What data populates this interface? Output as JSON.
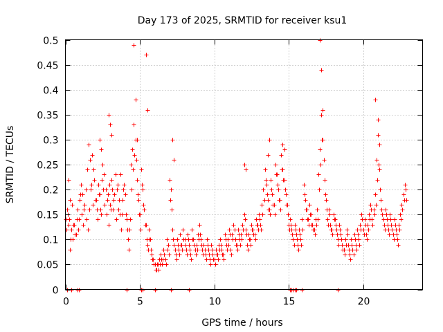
{
  "chart_data": {
    "type": "scatter",
    "title": "Day 173 of 2025, SRMTID for receiver ksu1",
    "xlabel": "GPS time / hours",
    "ylabel": "SRMTID / TECUs",
    "xlim": [
      0,
      24
    ],
    "ylim": [
      0,
      0.5
    ],
    "xticks": [
      0,
      5,
      10,
      15,
      20
    ],
    "xtick_labels": [
      "0",
      "5",
      "10",
      "15",
      "20"
    ],
    "yticks": [
      0,
      0.05,
      0.1,
      0.15,
      0.2,
      0.25,
      0.3,
      0.35,
      0.4,
      0.45,
      0.5
    ],
    "ytick_labels": [
      "0",
      "0.05",
      "0.1",
      "0.15",
      "0.2",
      "0.25",
      "0.3",
      "0.35",
      "0.4",
      "0.45",
      "0.5"
    ],
    "grid": true,
    "marker": "+",
    "color": "#ff0000",
    "series": [
      {
        "name": "SRMTID",
        "x": [
          0.0,
          0.1,
          0.2,
          0.3,
          0.4,
          0.5,
          0.6,
          0.7,
          0.8,
          0.9,
          1.0,
          1.1,
          1.2,
          1.3,
          1.4,
          1.5,
          1.6,
          1.7,
          1.8,
          1.9,
          2.0,
          2.1,
          2.2,
          2.3,
          2.4,
          2.5,
          2.6,
          2.7,
          2.8,
          2.9,
          3.0,
          3.1,
          3.2,
          3.3,
          3.4,
          3.5,
          3.6,
          3.7,
          3.8,
          3.9,
          4.0,
          4.1,
          4.2,
          4.3,
          4.4,
          4.5,
          4.6,
          4.7,
          4.8,
          4.9,
          5.0,
          5.1,
          5.2,
          5.3,
          5.4,
          5.5,
          5.6,
          5.7,
          5.8,
          5.9,
          6.0,
          6.1,
          6.2,
          6.3,
          6.4,
          6.5,
          6.6,
          6.7,
          6.8,
          6.9,
          7.0,
          7.1,
          7.2,
          7.3,
          7.4,
          7.5,
          7.6,
          7.7,
          7.8,
          7.9,
          8.0,
          8.1,
          8.2,
          8.3,
          8.4,
          8.5,
          8.6,
          8.7,
          8.8,
          8.9,
          9.0,
          9.1,
          9.2,
          9.3,
          9.4,
          9.5,
          9.6,
          9.7,
          9.8,
          9.9,
          10.0,
          10.1,
          10.2,
          10.3,
          10.4,
          10.5,
          10.6,
          10.7,
          10.8,
          10.9,
          11.0,
          11.1,
          11.2,
          11.3,
          11.4,
          11.5,
          11.6,
          11.7,
          11.8,
          11.9,
          12.0,
          12.1,
          12.2,
          12.3,
          12.4,
          12.5,
          12.6,
          12.7,
          12.8,
          12.9,
          13.0,
          13.1,
          13.2,
          13.3,
          13.4,
          13.5,
          13.6,
          13.7,
          13.8,
          13.9,
          14.0,
          14.1,
          14.2,
          14.3,
          14.4,
          14.5,
          14.6,
          14.7,
          14.8,
          14.9,
          15.0,
          15.1,
          15.2,
          15.3,
          15.4,
          15.5,
          15.6,
          15.7,
          15.8,
          15.9,
          16.0,
          16.1,
          16.2,
          16.3,
          16.4,
          16.5,
          16.6,
          16.7,
          16.8,
          16.9,
          17.0,
          17.1,
          17.2,
          17.3,
          17.4,
          17.5,
          17.6,
          17.7,
          17.8,
          17.9,
          18.0,
          18.1,
          18.2,
          18.3,
          18.4,
          18.5,
          18.6,
          18.7,
          18.8,
          18.9,
          19.0,
          19.1,
          19.2,
          19.3,
          19.4,
          19.5,
          19.6,
          19.7,
          19.8,
          19.9,
          20.0,
          20.1,
          20.2,
          20.3,
          20.4,
          20.5,
          20.6,
          20.7,
          20.8,
          20.9,
          21.0,
          21.1,
          21.2,
          21.3,
          21.4,
          21.5,
          21.6,
          21.7,
          21.8,
          21.9,
          22.0,
          22.1,
          22.2,
          22.3,
          22.4,
          22.5,
          22.6,
          22.7,
          22.8,
          22.9,
          0.05,
          0.15,
          0.25,
          0.35,
          0.45,
          0.55,
          0.65,
          0.75,
          0.85,
          0.95,
          1.05,
          1.15,
          1.25,
          1.35,
          1.45,
          1.55,
          1.65,
          1.75,
          1.85,
          1.95,
          2.05,
          2.15,
          2.25,
          2.35,
          2.45,
          2.55,
          2.65,
          2.75,
          2.85,
          2.95,
          3.05,
          3.15,
          3.25,
          3.35,
          3.45,
          3.55,
          3.65,
          3.75,
          3.85,
          3.95,
          4.05,
          4.15,
          4.25,
          4.35,
          4.45,
          4.55,
          4.65,
          4.75,
          4.85,
          4.95,
          5.05,
          5.15,
          5.25,
          5.35,
          5.45,
          5.55,
          5.65,
          5.75,
          5.85,
          5.95,
          6.05,
          6.15,
          6.25,
          6.35,
          6.45,
          6.55,
          6.65,
          6.75,
          6.85,
          6.95,
          7.05,
          7.15,
          7.25,
          7.35,
          7.45,
          7.55,
          7.65,
          7.75,
          7.85,
          7.95,
          8.05,
          8.15,
          8.25,
          8.35,
          8.45,
          8.55,
          8.65,
          8.75,
          8.85,
          8.95,
          9.05,
          9.15,
          9.25,
          9.35,
          9.45,
          9.55,
          9.65,
          9.75,
          9.85,
          9.95,
          10.05,
          10.15,
          10.25,
          10.35,
          10.45,
          10.55,
          10.65,
          10.75,
          10.85,
          10.95,
          11.05,
          11.15,
          11.25,
          11.35,
          11.45,
          11.55,
          11.65,
          11.75,
          11.85,
          11.95,
          12.05,
          12.15,
          12.25,
          12.35,
          12.45,
          12.55,
          12.65,
          12.75,
          12.85,
          12.95,
          13.05,
          13.15,
          13.25,
          13.35,
          13.45,
          13.55,
          13.65,
          13.75,
          13.85,
          13.95,
          14.05,
          14.15,
          14.25,
          14.35,
          14.45,
          14.55,
          14.65,
          14.75,
          14.85,
          14.95,
          15.05,
          15.15,
          15.25,
          15.35,
          15.45,
          15.55,
          15.65,
          15.75,
          15.85,
          15.95,
          16.05,
          16.15,
          16.25,
          16.35,
          16.45,
          16.55,
          16.65,
          16.75,
          16.85,
          16.95,
          17.05,
          17.15,
          17.25,
          17.35,
          17.45,
          17.55,
          17.65,
          17.75,
          17.85,
          17.95,
          18.05,
          18.15,
          18.25,
          18.35,
          18.45,
          18.55,
          18.65,
          18.75,
          18.85,
          18.95,
          19.05,
          19.15,
          19.25,
          19.35,
          19.45,
          19.55,
          19.65,
          19.75,
          19.85,
          19.95,
          20.05,
          20.15,
          20.25,
          20.35,
          20.45,
          20.55,
          20.65,
          20.75,
          20.85,
          20.95,
          21.05,
          21.15,
          21.25,
          21.35,
          21.45,
          21.55,
          21.65,
          21.75,
          21.85,
          21.95,
          22.05,
          22.15,
          22.25,
          22.35,
          22.45,
          22.55,
          22.65,
          22.75,
          22.85,
          0.2,
          0.3,
          4.6,
          4.7,
          4.8,
          5.4,
          5.5,
          17.1,
          17.2,
          17.3,
          20.8,
          21.0,
          21.1,
          7.2,
          7.3,
          14.6,
          14.7,
          13.6,
          13.7,
          12.0,
          12.1,
          2.9,
          3.0,
          3.1,
          2.3,
          2.4
        ],
        "y": [
          0.14,
          0.16,
          0.22,
          0.18,
          0.12,
          0.1,
          0.13,
          0.11,
          0.16,
          0.14,
          0.19,
          0.15,
          0.13,
          0.17,
          0.14,
          0.12,
          0.16,
          0.2,
          0.27,
          0.24,
          0.18,
          0.16,
          0.21,
          0.19,
          0.15,
          0.25,
          0.23,
          0.2,
          0.18,
          0.13,
          0.17,
          0.22,
          0.16,
          0.19,
          0.14,
          0.21,
          0.18,
          0.23,
          0.15,
          0.2,
          0.19,
          0.14,
          0.1,
          0.12,
          0.25,
          0.28,
          0.33,
          0.3,
          0.22,
          0.18,
          0.15,
          0.24,
          0.2,
          0.16,
          0.13,
          0.09,
          0.12,
          0.1,
          0.07,
          0.06,
          0.05,
          0.04,
          0.05,
          0.06,
          0.07,
          0.05,
          0.08,
          0.06,
          0.1,
          0.09,
          0.22,
          0.2,
          0.12,
          0.09,
          0.07,
          0.1,
          0.08,
          0.11,
          0.09,
          0.12,
          0.1,
          0.08,
          0.11,
          0.09,
          0.07,
          0.12,
          0.1,
          0.08,
          0.09,
          0.11,
          0.13,
          0.1,
          0.08,
          0.09,
          0.07,
          0.1,
          0.08,
          0.06,
          0.09,
          0.07,
          0.06,
          0.08,
          0.07,
          0.09,
          0.1,
          0.08,
          0.07,
          0.11,
          0.09,
          0.1,
          0.12,
          0.08,
          0.11,
          0.13,
          0.1,
          0.09,
          0.12,
          0.1,
          0.11,
          0.13,
          0.15,
          0.12,
          0.09,
          0.11,
          0.1,
          0.13,
          0.12,
          0.11,
          0.14,
          0.13,
          0.15,
          0.13,
          0.17,
          0.2,
          0.24,
          0.21,
          0.18,
          0.16,
          0.22,
          0.19,
          0.17,
          0.25,
          0.23,
          0.2,
          0.18,
          0.27,
          0.24,
          0.22,
          0.19,
          0.17,
          0.13,
          0.14,
          0.12,
          0.1,
          0.13,
          0.11,
          0.09,
          0.12,
          0.1,
          0.14,
          0.21,
          0.18,
          0.16,
          0.14,
          0.17,
          0.15,
          0.13,
          0.12,
          0.14,
          0.16,
          0.23,
          0.28,
          0.35,
          0.3,
          0.22,
          0.18,
          0.14,
          0.16,
          0.13,
          0.12,
          0.15,
          0.14,
          0.12,
          0.1,
          0.13,
          0.11,
          0.09,
          0.08,
          0.1,
          0.12,
          0.09,
          0.07,
          0.1,
          0.08,
          0.11,
          0.09,
          0.12,
          0.1,
          0.13,
          0.15,
          0.12,
          0.14,
          0.11,
          0.13,
          0.15,
          0.17,
          0.14,
          0.16,
          0.19,
          0.26,
          0.31,
          0.24,
          0.18,
          0.15,
          0.13,
          0.16,
          0.14,
          0.12,
          0.15,
          0.13,
          0.11,
          0.14,
          0.12,
          0.1,
          0.13,
          0.15,
          0.17,
          0.19,
          0.21,
          0.18,
          0.12,
          0.15,
          0.14,
          0.1,
          0.17,
          0.13,
          0.11,
          0.14,
          0.12,
          0.18,
          0.21,
          0.19,
          0.16,
          0.2,
          0.24,
          0.29,
          0.26,
          0.21,
          0.17,
          0.22,
          0.18,
          0.14,
          0.19,
          0.16,
          0.22,
          0.2,
          0.17,
          0.15,
          0.19,
          0.21,
          0.16,
          0.2,
          0.18,
          0.23,
          0.2,
          0.16,
          0.15,
          0.12,
          0.18,
          0.21,
          0.15,
          0.12,
          0.08,
          0.14,
          0.2,
          0.24,
          0.27,
          0.26,
          0.19,
          0.15,
          0.12,
          0.21,
          0.17,
          0.13,
          0.1,
          0.08,
          0.1,
          0.08,
          0.06,
          0.05,
          0.04,
          0.05,
          0.04,
          0.05,
          0.06,
          0.06,
          0.07,
          0.05,
          0.08,
          0.07,
          0.18,
          0.16,
          0.1,
          0.08,
          0.06,
          0.09,
          0.07,
          0.09,
          0.08,
          0.1,
          0.09,
          0.07,
          0.1,
          0.08,
          0.06,
          0.1,
          0.09,
          0.07,
          0.08,
          0.1,
          0.11,
          0.09,
          0.07,
          0.08,
          0.06,
          0.09,
          0.07,
          0.05,
          0.08,
          0.06,
          0.05,
          0.07,
          0.06,
          0.08,
          0.09,
          0.07,
          0.06,
          0.1,
          0.08,
          0.09,
          0.11,
          0.07,
          0.1,
          0.12,
          0.09,
          0.08,
          0.11,
          0.09,
          0.1,
          0.12,
          0.14,
          0.11,
          0.08,
          0.1,
          0.09,
          0.12,
          0.11,
          0.1,
          0.13,
          0.12,
          0.14,
          0.12,
          0.15,
          0.18,
          0.22,
          0.19,
          0.16,
          0.15,
          0.2,
          0.17,
          0.15,
          0.23,
          0.21,
          0.18,
          0.16,
          0.24,
          0.22,
          0.2,
          0.17,
          0.15,
          0.12,
          0.13,
          0.11,
          0.09,
          0.12,
          0.1,
          0.08,
          0.11,
          0.09,
          0.12,
          0.19,
          0.16,
          0.14,
          0.13,
          0.15,
          0.13,
          0.12,
          0.11,
          0.13,
          0.14,
          0.2,
          0.25,
          0.3,
          0.26,
          0.19,
          0.16,
          0.13,
          0.15,
          0.12,
          0.11,
          0.14,
          0.13,
          0.11,
          0.09,
          0.12,
          0.1,
          0.08,
          0.07,
          0.09,
          0.11,
          0.08,
          0.06,
          0.09,
          0.07,
          0.1,
          0.08,
          0.11,
          0.09,
          0.12,
          0.14,
          0.11,
          0.13,
          0.1,
          0.12,
          0.14,
          0.16,
          0.13,
          0.15,
          0.17,
          0.22,
          0.25,
          0.2,
          0.16,
          0.14,
          0.12,
          0.15,
          0.13,
          0.11,
          0.14,
          0.12,
          0.1,
          0.13,
          0.11,
          0.09,
          0.12,
          0.14,
          0.16,
          0.18,
          0.2,
          0.13,
          0.08,
          0.49,
          0.38,
          0.3,
          0.47,
          0.36,
          0.5,
          0.44,
          0.36,
          0.38,
          0.34,
          0.29,
          0.3,
          0.26,
          0.29,
          0.28,
          0.27,
          0.3,
          0.25,
          0.24,
          0.35,
          0.33,
          0.31,
          0.3,
          0.28
        ]
      }
    ],
    "zero_markers_x": [
      0.1,
      0.4,
      0.8,
      0.9,
      4.1,
      5.1,
      5.2,
      6.0,
      7.1,
      8.3,
      15.1,
      15.2,
      15.3,
      15.4,
      15.5,
      15.9,
      18.3
    ]
  }
}
